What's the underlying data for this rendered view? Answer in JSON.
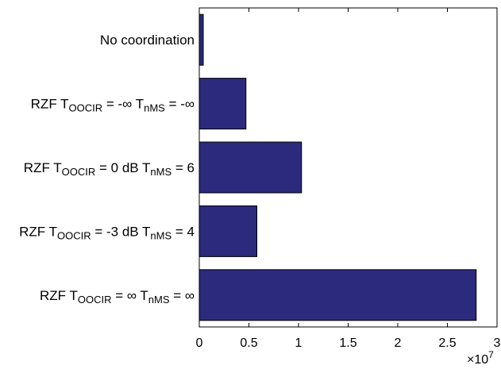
{
  "chart_data": {
    "type": "bar",
    "orientation": "horizontal",
    "categories": [
      {
        "id": "no-coord",
        "text": "No coordination",
        "parts": [
          {
            "t": "No coordination"
          }
        ]
      },
      {
        "id": "rzf-ninf",
        "text": "RZF T_OOCIR = -∞ T_nMS = -∞",
        "parts": [
          {
            "t": "RZF T"
          },
          {
            "t": "OOCIR",
            "sub": true
          },
          {
            "t": " = -∞ T"
          },
          {
            "t": "nMS",
            "sub": true
          },
          {
            "t": " = -∞"
          }
        ]
      },
      {
        "id": "rzf-0db",
        "text": "RZF T_OOCIR = 0 dB T_nMS = 6",
        "parts": [
          {
            "t": "RZF T"
          },
          {
            "t": "OOCIR",
            "sub": true
          },
          {
            "t": " = 0 dB T"
          },
          {
            "t": "nMS",
            "sub": true
          },
          {
            "t": " = 6"
          }
        ]
      },
      {
        "id": "rzf-m3db",
        "text": "RZF T_OOCIR = -3 dB T_nMS = 4",
        "parts": [
          {
            "t": "RZF T"
          },
          {
            "t": "OOCIR",
            "sub": true
          },
          {
            "t": " = -3 dB T"
          },
          {
            "t": "nMS",
            "sub": true
          },
          {
            "t": " = 4"
          }
        ]
      },
      {
        "id": "rzf-inf",
        "text": "RZF T_OOCIR = ∞ T_nMS = ∞",
        "parts": [
          {
            "t": "RZF T"
          },
          {
            "t": "OOCIR",
            "sub": true
          },
          {
            "t": " = ∞ T"
          },
          {
            "t": "nMS",
            "sub": true
          },
          {
            "t": " = ∞"
          }
        ]
      }
    ],
    "values": [
      0.04,
      0.47,
      1.03,
      0.58,
      2.79
    ],
    "xlim": [
      0,
      3
    ],
    "xticks": [
      0,
      0.5,
      1,
      1.5,
      2,
      2.5,
      3
    ],
    "xtick_labels": [
      "0",
      "0.5",
      "1",
      "1.5",
      "2",
      "2.5",
      "3"
    ],
    "x_multiplier": {
      "base": "×10",
      "exp": "7"
    },
    "bar_color": "#2b2a7c",
    "grid": false,
    "title": "",
    "xlabel": "",
    "ylabel": ""
  }
}
